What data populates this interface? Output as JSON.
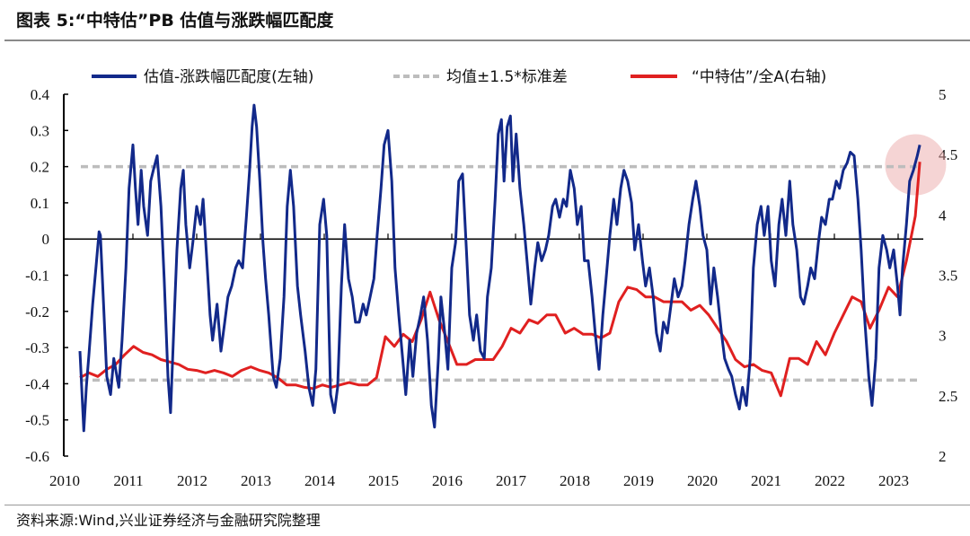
{
  "header": {
    "title": "图表 5:“中特估”PB 估值与涨跌幅匹配度"
  },
  "footer": {
    "source": "资料来源:Wind,兴业证券经济与金融研究院整理"
  },
  "chart_data": {
    "type": "line",
    "title": "图表 5:“中特估”PB 估值与涨跌幅匹配度",
    "legend_position": "top",
    "grid": false,
    "x_ticks": [
      "2010",
      "2011",
      "2012",
      "2013",
      "2014",
      "2015",
      "2016",
      "2017",
      "2018",
      "2019",
      "2020",
      "2021",
      "2022",
      "2023"
    ],
    "xlim": [
      2010,
      2023.5
    ],
    "y_left": {
      "ylim": [
        -0.6,
        0.4
      ],
      "ticks": [
        "0.4",
        "0.3",
        "0.2",
        "0.1",
        "0",
        "-0.1",
        "-0.2",
        "-0.3",
        "-0.4",
        "-0.5",
        "-0.6"
      ]
    },
    "y_right": {
      "ylim": [
        2,
        5
      ],
      "ticks": [
        "5",
        "4.5",
        "4",
        "3.5",
        "3",
        "2.5",
        "2"
      ]
    },
    "highlight": {
      "x": 2023.4,
      "y_left": 0.23,
      "color": "#e9a0a0"
    },
    "series": [
      {
        "name": "估值-涨跌幅匹配度(左轴)",
        "axis": "left",
        "color": "#12298a",
        "x": [
          2010.24,
          2010.3,
          2010.34,
          2010.38,
          2010.44,
          2010.49,
          2010.54,
          2010.56,
          2010.61,
          2010.66,
          2010.72,
          2010.77,
          2010.85,
          2010.9,
          2010.96,
          2011.01,
          2011.07,
          2011.11,
          2011.15,
          2011.2,
          2011.24,
          2011.3,
          2011.35,
          2011.39,
          2011.45,
          2011.51,
          2011.56,
          2011.62,
          2011.66,
          2011.72,
          2011.76,
          2011.82,
          2011.86,
          2011.9,
          2011.96,
          2012.01,
          2012.07,
          2012.13,
          2012.17,
          2012.23,
          2012.28,
          2012.32,
          2012.39,
          2012.45,
          2012.51,
          2012.56,
          2012.62,
          2012.68,
          2012.73,
          2012.79,
          2012.85,
          2012.9,
          2012.94,
          2012.97,
          2013.01,
          2013.06,
          2013.11,
          2013.15,
          2013.2,
          2013.27,
          2013.32,
          2013.38,
          2013.44,
          2013.49,
          2013.54,
          2013.59,
          2013.65,
          2013.7,
          2013.77,
          2013.83,
          2013.89,
          2013.94,
          2014.0,
          2014.06,
          2014.11,
          2014.17,
          2014.23,
          2014.28,
          2014.34,
          2014.39,
          2014.45,
          2014.51,
          2014.56,
          2014.62,
          2014.68,
          2014.73,
          2014.79,
          2014.85,
          2014.9,
          2014.96,
          2015.01,
          2015.07,
          2015.13,
          2015.18,
          2015.24,
          2015.3,
          2015.35,
          2015.41,
          2015.46,
          2015.52,
          2015.58,
          2015.63,
          2015.69,
          2015.75,
          2015.8,
          2015.86,
          2015.9,
          2015.96,
          2016.01,
          2016.07,
          2016.13,
          2016.18,
          2016.24,
          2016.3,
          2016.35,
          2016.41,
          2016.46,
          2016.52,
          2016.58,
          2016.63,
          2016.69,
          2016.75,
          2016.8,
          2016.85,
          2016.89,
          2016.94,
          2016.99,
          2017.03,
          2017.08,
          2017.14,
          2017.2,
          2017.25,
          2017.31,
          2017.37,
          2017.42,
          2017.48,
          2017.54,
          2017.59,
          2017.65,
          2017.7,
          2017.76,
          2017.82,
          2017.87,
          2017.93,
          2017.99,
          2018.04,
          2018.1,
          2018.15,
          2018.21,
          2018.27,
          2018.32,
          2018.38,
          2018.44,
          2018.49,
          2018.55,
          2018.61,
          2018.66,
          2018.72,
          2018.77,
          2018.83,
          2018.89,
          2018.94,
          2019.0,
          2019.06,
          2019.11,
          2019.17,
          2019.23,
          2019.28,
          2019.34,
          2019.39,
          2019.45,
          2019.51,
          2019.56,
          2019.62,
          2019.68,
          2019.73,
          2019.79,
          2019.85,
          2019.9,
          2019.96,
          2020.01,
          2020.07,
          2020.13,
          2020.18,
          2020.24,
          2020.3,
          2020.35,
          2020.41,
          2020.46,
          2020.52,
          2020.58,
          2020.63,
          2020.69,
          2020.75,
          2020.8,
          2020.86,
          2020.92,
          2020.97,
          2021.03,
          2021.08,
          2021.14,
          2021.2,
          2021.25,
          2021.31,
          2021.37,
          2021.42,
          2021.48,
          2021.54,
          2021.59,
          2021.65,
          2021.7,
          2021.76,
          2021.82,
          2021.87,
          2021.93,
          2021.99,
          2022.04,
          2022.1,
          2022.15,
          2022.21,
          2022.27,
          2022.32,
          2022.38,
          2022.44,
          2022.49,
          2022.55,
          2022.61,
          2022.66,
          2022.72,
          2022.77,
          2022.83,
          2022.89,
          2022.94,
          2023.0,
          2023.06,
          2023.1,
          2023.14,
          2023.2,
          2023.25,
          2023.31,
          2023.37,
          2023.41
        ],
        "y": [
          -0.31,
          -0.53,
          -0.41,
          -0.32,
          -0.18,
          -0.08,
          0.02,
          0.01,
          -0.18,
          -0.38,
          -0.43,
          -0.33,
          -0.41,
          -0.28,
          -0.08,
          0.14,
          0.26,
          0.14,
          0.04,
          0.19,
          0.09,
          0.01,
          0.16,
          0.19,
          0.23,
          0.09,
          -0.11,
          -0.38,
          -0.48,
          -0.21,
          -0.03,
          0.14,
          0.19,
          0.04,
          -0.08,
          -0.01,
          0.09,
          0.04,
          0.11,
          -0.06,
          -0.21,
          -0.28,
          -0.18,
          -0.31,
          -0.23,
          -0.16,
          -0.13,
          -0.08,
          -0.06,
          -0.08,
          0.06,
          0.19,
          0.31,
          0.37,
          0.31,
          0.16,
          -0.01,
          -0.11,
          -0.21,
          -0.38,
          -0.41,
          -0.33,
          -0.16,
          0.09,
          0.19,
          0.09,
          -0.13,
          -0.21,
          -0.31,
          -0.41,
          -0.46,
          -0.36,
          0.04,
          0.11,
          0.01,
          -0.43,
          -0.48,
          -0.41,
          -0.13,
          0.04,
          -0.11,
          -0.16,
          -0.23,
          -0.23,
          -0.18,
          -0.21,
          -0.16,
          -0.11,
          0.01,
          0.14,
          0.26,
          0.3,
          0.16,
          -0.08,
          -0.21,
          -0.33,
          -0.43,
          -0.28,
          -0.38,
          -0.26,
          -0.21,
          -0.16,
          -0.28,
          -0.46,
          -0.52,
          -0.33,
          -0.16,
          -0.26,
          -0.36,
          -0.08,
          -0.01,
          0.16,
          0.18,
          -0.03,
          -0.21,
          -0.28,
          -0.21,
          -0.31,
          -0.33,
          -0.16,
          -0.08,
          0.11,
          0.29,
          0.33,
          0.16,
          0.31,
          0.34,
          0.16,
          0.29,
          0.14,
          0.04,
          -0.06,
          -0.18,
          -0.08,
          -0.01,
          -0.06,
          -0.03,
          0.01,
          0.09,
          0.11,
          0.06,
          0.11,
          0.09,
          0.19,
          0.14,
          0.04,
          0.09,
          -0.06,
          -0.06,
          -0.16,
          -0.26,
          -0.36,
          -0.21,
          -0.11,
          0.01,
          0.11,
          0.04,
          0.14,
          0.19,
          0.16,
          0.1,
          -0.03,
          0.04,
          -0.06,
          -0.13,
          -0.08,
          -0.16,
          -0.26,
          -0.31,
          -0.23,
          -0.26,
          -0.18,
          -0.11,
          -0.16,
          -0.13,
          -0.06,
          0.04,
          0.11,
          0.16,
          0.09,
          0.01,
          -0.03,
          -0.18,
          -0.08,
          -0.16,
          -0.26,
          -0.33,
          -0.36,
          -0.38,
          -0.43,
          -0.47,
          -0.41,
          -0.46,
          -0.33,
          -0.08,
          0.04,
          0.09,
          0.01,
          0.09,
          -0.06,
          -0.13,
          0.04,
          0.11,
          0.01,
          0.16,
          0.04,
          -0.03,
          -0.16,
          -0.18,
          -0.13,
          -0.08,
          -0.11,
          -0.01,
          0.06,
          0.04,
          0.11,
          0.11,
          0.16,
          0.14,
          0.19,
          0.21,
          0.24,
          0.23,
          0.11,
          -0.03,
          -0.23,
          -0.38,
          -0.46,
          -0.33,
          -0.08,
          0.01,
          -0.03,
          -0.08,
          -0.03,
          -0.13,
          -0.21,
          -0.08,
          0.04,
          0.16,
          0.19,
          0.23,
          0.26
        ]
      },
      {
        "name": "均值±1.5*标准差",
        "axis": "left",
        "color": "#bdbdbd",
        "style": "dashed",
        "levels": [
          0.2,
          -0.39
        ]
      },
      {
        "name": "“中特估”/全A(右轴)",
        "axis": "right",
        "color": "#e02020",
        "x": [
          2010.24,
          2010.38,
          2010.52,
          2010.66,
          2010.8,
          2010.94,
          2011.08,
          2011.23,
          2011.37,
          2011.51,
          2011.65,
          2011.79,
          2011.93,
          2012.07,
          2012.21,
          2012.35,
          2012.49,
          2012.63,
          2012.77,
          2012.92,
          2013.06,
          2013.2,
          2013.34,
          2013.48,
          2013.62,
          2013.76,
          2013.9,
          2014.04,
          2014.18,
          2014.32,
          2014.46,
          2014.61,
          2014.75,
          2014.89,
          2015.03,
          2015.17,
          2015.31,
          2015.45,
          2015.59,
          2015.73,
          2015.87,
          2016.01,
          2016.15,
          2016.3,
          2016.44,
          2016.58,
          2016.72,
          2016.86,
          2017.0,
          2017.14,
          2017.28,
          2017.42,
          2017.56,
          2017.7,
          2017.85,
          2017.99,
          2018.13,
          2018.27,
          2018.41,
          2018.55,
          2018.69,
          2018.83,
          2018.97,
          2019.11,
          2019.25,
          2019.39,
          2019.54,
          2019.68,
          2019.82,
          2019.96,
          2020.1,
          2020.24,
          2020.38,
          2020.52,
          2020.66,
          2020.8,
          2020.94,
          2021.08,
          2021.23,
          2021.37,
          2021.51,
          2021.65,
          2021.79,
          2021.93,
          2022.07,
          2022.21,
          2022.35,
          2022.49,
          2022.63,
          2022.77,
          2022.92,
          2023.06,
          2023.2,
          2023.34,
          2023.41
        ],
        "y": [
          2.65,
          2.69,
          2.66,
          2.72,
          2.76,
          2.84,
          2.91,
          2.86,
          2.84,
          2.8,
          2.78,
          2.76,
          2.72,
          2.71,
          2.69,
          2.71,
          2.69,
          2.66,
          2.71,
          2.74,
          2.71,
          2.69,
          2.65,
          2.59,
          2.59,
          2.57,
          2.56,
          2.59,
          2.57,
          2.59,
          2.61,
          2.59,
          2.59,
          2.65,
          2.99,
          2.91,
          3.01,
          2.95,
          3.13,
          3.36,
          3.13,
          2.95,
          2.76,
          2.76,
          2.8,
          2.8,
          2.8,
          2.91,
          3.06,
          3.02,
          3.13,
          3.1,
          3.17,
          3.17,
          3.02,
          3.06,
          3.01,
          3.01,
          2.98,
          3.02,
          3.28,
          3.4,
          3.38,
          3.32,
          3.32,
          3.28,
          3.28,
          3.28,
          3.21,
          3.25,
          3.17,
          3.06,
          2.95,
          2.8,
          2.74,
          2.76,
          2.71,
          2.69,
          2.5,
          2.81,
          2.81,
          2.76,
          2.95,
          2.84,
          3.02,
          3.17,
          3.32,
          3.28,
          3.06,
          3.21,
          3.4,
          3.32,
          3.62,
          3.99,
          4.44
        ]
      }
    ]
  }
}
